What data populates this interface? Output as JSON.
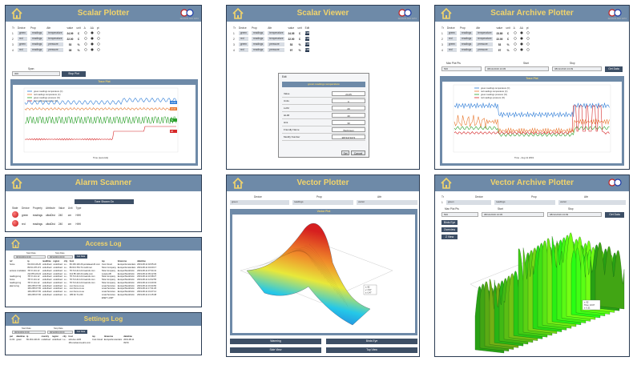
{
  "colors": {
    "header": "#6e8aa8",
    "title": "#f2d46b",
    "dark": "#2a3b52",
    "button": "#3d4f66"
  },
  "scalar_plotter": {
    "title": "Scalar Plotter",
    "logo_text": "SENSOR AND DATA",
    "columns": [
      "Tr",
      "Device",
      "Prop",
      "Attr",
      "value",
      "unit",
      "Δ",
      "ΔΔ",
      "pt"
    ],
    "rows": [
      {
        "tr": "1",
        "device": "green",
        "prop": "readings",
        "attr": "temperature",
        "value": "24.09",
        "unit": "C"
      },
      {
        "tr": "2",
        "device": "red",
        "prop": "readings",
        "attr": "temperature",
        "value": "22.00",
        "unit": "C"
      },
      {
        "tr": "3",
        "device": "green",
        "prop": "readings",
        "attr": "pressure",
        "value": "53",
        "unit": "%"
      },
      {
        "tr": "4",
        "device": "red",
        "prop": "readings",
        "attr": "pressure",
        "value": "38",
        "unit": "%"
      }
    ],
    "span_label": "Span",
    "span_value": "300",
    "stop_button": "Stop Plot",
    "plot_title": "Trace Plot",
    "legend": [
      "green readings temperature (C)",
      "red readings temperature (C)",
      "green readings pressure (%)",
      "red readings pressure (%)"
    ],
    "xlabel": "Time (seconds)",
    "callouts": [
      "24.09",
      "22.00",
      "53",
      "38"
    ]
  },
  "scalar_viewer": {
    "title": "Scalar Viewer",
    "logo_text": "SENSOR AND DATA",
    "columns": [
      "Tr",
      "Device",
      "Prop",
      "Attr",
      "value",
      "unit",
      "Edit"
    ],
    "rows": [
      {
        "tr": "1",
        "device": "green",
        "prop": "readings",
        "attr": "temperature",
        "value": "24.05",
        "unit": "C",
        "edit": "Edit"
      },
      {
        "tr": "2",
        "device": "red",
        "prop": "readings",
        "attr": "temperature",
        "value": "22.00",
        "unit": "C",
        "edit": "Edit"
      },
      {
        "tr": "3",
        "device": "green",
        "prop": "readings",
        "attr": "pressure",
        "value": "53",
        "unit": "%",
        "edit": "Edit"
      },
      {
        "tr": "4",
        "device": "red",
        "prop": "readings",
        "attr": "pressure",
        "value": "97",
        "unit": "%",
        "edit": "Edit"
      }
    ],
    "dialog": {
      "title": "Edit",
      "subtitle": "green readings temperature",
      "fields": [
        {
          "label": "Value",
          "value": "24.05"
        },
        {
          "label": "Units",
          "value": "C"
        },
        {
          "label": "LLIM",
          "value": "20"
        },
        {
          "label": "HLIM",
          "value": "40"
        },
        {
          "label": "Hint",
          "value": "30"
        },
        {
          "label": "Friendly Name",
          "value": "WetGreen"
        },
        {
          "label": "Modify Number",
          "value": "9872471072"
        }
      ],
      "set_button": "Set",
      "cancel_button": "Cancel"
    }
  },
  "scalar_archive_plotter": {
    "title": "Scalar Archive Plotter",
    "logo_text": "SENSOR AND DATA",
    "columns": [
      "Tr",
      "Device",
      "Prop",
      "Attr",
      "value",
      "unit",
      "Δ",
      "ΔΔ",
      "pt"
    ],
    "rows": [
      {
        "tr": "1",
        "device": "green",
        "prop": "readings",
        "attr": "temperature",
        "value": "23.80",
        "unit": "C"
      },
      {
        "tr": "2",
        "device": "red",
        "prop": "readings",
        "attr": "temperature",
        "value": "22.00",
        "unit": "C"
      },
      {
        "tr": "3",
        "device": "green",
        "prop": "readings",
        "attr": "pressure",
        "value": "53",
        "unit": "%"
      },
      {
        "tr": "4",
        "device": "red",
        "prop": "readings",
        "attr": "pressure",
        "value": "97",
        "unit": "%"
      }
    ],
    "max_pts_label": "Max Plot Pts",
    "max_pts_value": "500",
    "start_label": "Start",
    "start_value": "08/11/2019 13:05",
    "stop_label": "Stop",
    "stop_value": "08/11/2019 13:09",
    "get_data_button": "Get Data",
    "plot_title": "Trace Plot",
    "legend": [
      "green readings temperature (C)",
      "red readings temperature (C)",
      "green readings pressure (%)",
      "red readings pressure (%)"
    ],
    "xlabel": "Time - Aug 11 2019"
  },
  "alarm_scanner": {
    "title": "Alarm Scanner",
    "silence_button": "Tone Shown On",
    "columns": [
      "State",
      "Device",
      "Property",
      "Attribute",
      "Value",
      "Unit",
      "Type"
    ],
    "rows": [
      {
        "device": "green",
        "property": "readings",
        "attribute": "ultraDist",
        "value": "240",
        "unit": "cm",
        "type": "HIHI"
      },
      {
        "device": "red",
        "property": "readings",
        "attribute": "ultraDist",
        "value": "240",
        "unit": "cm",
        "type": "HIHI"
      }
    ]
  },
  "access_log": {
    "title": "Access Log",
    "start_label": "Start Date",
    "start_value": "08/10/2019 00:00",
    "stop_label": "Stop Date",
    "stop_value": "08/11/2019 00:00",
    "get_button": "Get Data",
    "columns": [
      "ref",
      "ip",
      "readtime",
      "region",
      "city",
      "host",
      "isp",
      "timezone",
      "datetime"
    ],
    "rows": [
      [
        "home",
        "69.163.146.26",
        "undefined",
        "undefined",
        "Lu...",
        "69.163.146.26.pocialseal.dh.com",
        "Cust Cloud",
        "Europe/Amsterdam",
        "2019-08-11 02:05:24"
      ],
      [
        "",
        "89.63.178.174",
        "undefined",
        "undefined",
        "Lu...",
        "89.63.178.174.mobil.net",
        "Telco Company",
        "Europe/Amsterdam",
        "2019-08-11 04:20:17"
      ],
      [
        "access modulator",
        "78.72.141.12",
        "undefined",
        "undefined",
        "Lu...",
        "78.72.141.12.broad.dn.com",
        "Telia Company",
        "Europe/Stockholm",
        "2019-08-11 07:34:41"
      ],
      [
        "",
        "212.85.120.24",
        "undefined",
        "undefined",
        "Lu...",
        "212.85.120.24.cable.com",
        "Loopia AB",
        "Europe/Stockholm",
        "2019-08-11 09:12:09"
      ],
      [
        "readings log",
        "78.72.141.12",
        "undefined",
        "undefined",
        "Lu...",
        "78.72.141.12.broad.dn.com",
        "Telia Company",
        "Europe/Stockholm",
        "2019-08-11 10:38:27"
      ],
      [
        "home",
        "78.72.141.12",
        "undefined",
        "undefined",
        "Lu...",
        "78.72.141.12.broad.dn.com",
        "Telia Company",
        "Europe/Stockholm",
        "2019-08-11 12:02:55"
      ],
      [
        "readings log",
        "78.72.141.12",
        "undefined",
        "undefined",
        "Lu...",
        "78.72.141.12.broad.dn.com",
        "Telia Company",
        "Europe/Stockholm",
        "2019-08-11 13:40:03"
      ],
      [
        "alarms log",
        "109.205.67.65",
        "undefined",
        "undefined",
        "Lu...",
        "ovo.home.xs.se",
        "Loval Services",
        "Europe/Stockholm",
        "2019-08-11 16:44:50"
      ],
      [
        "",
        "109.205.67.65",
        "undefined",
        "undefined",
        "Lu...",
        "ovo.home.xs.se",
        "Loval Services",
        "Europe/Stockholm",
        "2019-08-11 17:31:26"
      ],
      [
        "",
        "109.205.67.65",
        "undefined",
        "undefined",
        "Lu...",
        "ovo.home.xs.se",
        "Loval Services",
        "Europe/Stockholm",
        "2019-08-11 19:47:12"
      ],
      [
        "",
        "109.205.67.65",
        "undefined",
        "undefined",
        "Lu...",
        "185.62.71.240",
        "Loval Services",
        "Europe/Stockholm",
        "2019-08-11 21:15:38"
      ],
      [
        "",
        "",
        "",
        "",
        "",
        "",
        "ESET LLMIT",
        "",
        ""
      ]
    ]
  },
  "settings_log": {
    "title": "Settings Log",
    "start_label": "Start Date",
    "start_value": "08/10/2019 00:00",
    "stop_label": "Stop Date",
    "stop_value": "08/11/2019 00:00",
    "get_button": "Get Data",
    "columns": [
      "put",
      "datetime",
      "ip",
      "country",
      "region",
      "city",
      "host",
      "isp",
      "timezone",
      "datetime"
    ],
    "rows": [
      [
        "11:04",
        "green",
        "69.163.146.26",
        "undefined",
        "undefined",
        "Lu...",
        "sdd-dev-1105",
        "Cust Cloud",
        "Europe/Amsterdam",
        "2019-08-11"
      ],
      [
        "",
        "",
        "",
        "",
        "",
        "",
        "181.ravlsat.tra.alco.com",
        "",
        "",
        "09:53"
      ]
    ]
  },
  "vector_plotter": {
    "title": "Vector Plotter",
    "columns": [
      "Device",
      "Prop",
      "Attr"
    ],
    "selects": [
      "green",
      "readings",
      "vector"
    ],
    "plot_title": "Vector Plot",
    "tooltip": [
      "x: 82",
      "y: 3.07",
      "z: 0.47"
    ],
    "buttons": [
      "Warming",
      "Birds Eye",
      "Side View",
      "Top View"
    ]
  },
  "vector_archive_plotter": {
    "title": "Vector Archive Plotter",
    "columns": [
      "Tr",
      "Device",
      "Prop",
      "Attr"
    ],
    "row": {
      "tr": "1",
      "device": "green",
      "prop": "readings",
      "attr": "vector"
    },
    "max_pts_label": "Max Plot Pts",
    "max_pts_value": "500",
    "start_label": "Start",
    "start_value": "08/11/2019 13:05",
    "stop_label": "Stop",
    "stop_value": "08/11/2019 13:09",
    "get_button": "Get Data",
    "side_buttons": [
      "Birds Eye",
      "Overview",
      "Z View"
    ],
    "tooltip": [
      "x: 92",
      "Time: 13:07",
      "z: 0.31"
    ]
  }
}
